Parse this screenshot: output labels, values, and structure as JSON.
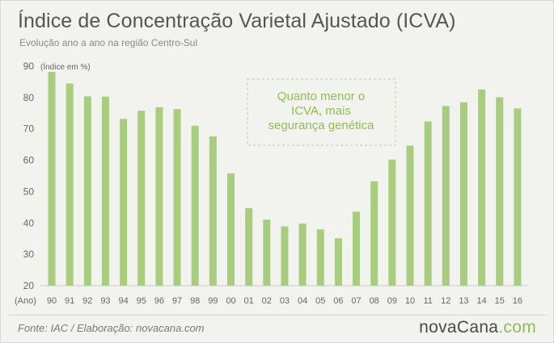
{
  "header": {
    "title": "Índice de Concentração Varietal Ajustado (ICVA)",
    "subtitle": "Evolução ano a ano na região Centro-Sul"
  },
  "footer": {
    "source": "Fonte: IAC / Elaboração: novacana.com",
    "logo_part1": "nova",
    "logo_part2": "Cana",
    "logo_dot": ".",
    "logo_part3": "com"
  },
  "colors": {
    "bar": "#a9cd7e",
    "annotation_text": "#8cc152",
    "annotation_border": "#b7d68f",
    "axis_text": "#666666",
    "grid": "#d9d9d4"
  },
  "chart_data": {
    "type": "bar",
    "ylabel": "(Índice em %)",
    "xlabel": "(Ano)",
    "ylim": [
      20,
      90
    ],
    "yticks": [
      20,
      30,
      40,
      50,
      60,
      70,
      80,
      90
    ],
    "grid": false,
    "categories": [
      "90",
      "91",
      "92",
      "93",
      "94",
      "95",
      "96",
      "97",
      "98",
      "99",
      "00",
      "01",
      "02",
      "03",
      "04",
      "05",
      "06",
      "07",
      "08",
      "09",
      "10",
      "11",
      "12",
      "13",
      "14",
      "15",
      "16"
    ],
    "values": [
      88.2,
      84.5,
      80.4,
      80.3,
      73.2,
      75.8,
      76.9,
      76.3,
      71.0,
      67.6,
      55.8,
      44.7,
      41.1,
      38.9,
      39.8,
      38.0,
      35.1,
      43.6,
      53.3,
      60.2,
      64.7,
      72.4,
      77.3,
      78.5,
      82.6,
      80.1,
      76.5
    ],
    "annotation": "Quanto menor o ICVA, mais segurança genética",
    "annotation_lines": [
      "Quanto menor o",
      "ICVA, mais",
      "segurança genética"
    ]
  }
}
